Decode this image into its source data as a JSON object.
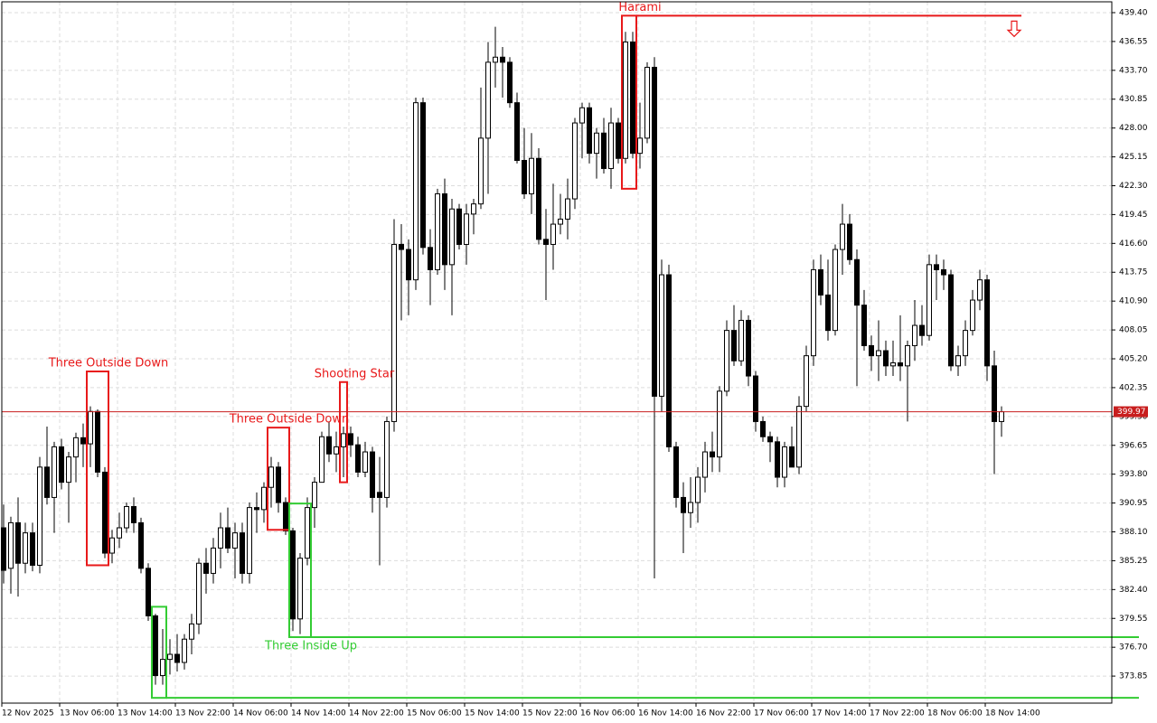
{
  "chart_data": {
    "type": "candlestick",
    "categories": [
      "12 Nov 2025",
      null,
      null,
      null,
      null,
      null,
      null,
      null,
      "13 Nov 06:00",
      null,
      null,
      null,
      null,
      null,
      null,
      null,
      "13 Nov 14:00",
      null,
      null,
      null,
      null,
      null,
      null,
      null,
      "13 Nov 22:00",
      null,
      null,
      null,
      null,
      null,
      null,
      null,
      "14 Nov 06:00",
      null,
      null,
      null,
      null,
      null,
      null,
      null,
      "14 Nov 14:00",
      null,
      null,
      null,
      null,
      null,
      null,
      null,
      "14 Nov 22:00",
      null,
      null,
      null,
      null,
      null,
      null,
      null,
      "15 Nov 06:00",
      null,
      null,
      null,
      null,
      null,
      null,
      null,
      "15 Nov 14:00",
      null,
      null,
      null,
      null,
      null,
      null,
      null,
      "15 Nov 22:00",
      null,
      null,
      null,
      null,
      null,
      null,
      null,
      "16 Nov 06:00",
      null,
      null,
      null,
      null,
      null,
      null,
      null,
      "16 Nov 14:00",
      null,
      null,
      null,
      null,
      null,
      null,
      null,
      "16 Nov 22:00",
      null,
      null,
      null,
      null,
      null,
      null,
      null,
      "17 Nov 06:00",
      null,
      null,
      null,
      null,
      null,
      null,
      null,
      "17 Nov 14:00",
      null,
      null,
      null,
      null,
      null,
      null,
      null,
      "17 Nov 22:00",
      null,
      null,
      null,
      null,
      null,
      null,
      null,
      "18 Nov 06:00",
      null,
      null,
      null,
      null,
      null,
      null,
      null,
      "18 Nov 14:00",
      null,
      null
    ],
    "open": [
      388.5,
      384.5,
      389.0,
      385.0,
      388.0,
      384.8,
      394.5,
      391.5,
      396.5,
      393.0,
      395.5,
      397.4,
      396.8,
      400.0,
      394.0,
      386.0,
      387.5,
      388.5,
      390.6,
      389.0,
      384.5,
      379.8,
      373.9,
      375.5,
      376.0,
      375.2,
      377.5,
      379.0,
      385.0,
      384.0,
      386.5,
      388.5,
      386.5,
      388.0,
      384.0,
      390.5,
      390.3,
      392.5,
      394.5,
      391.0,
      388.2,
      379.5,
      385.5,
      390.5,
      393.0,
      397.5,
      395.8,
      396.5,
      397.8,
      396.7,
      394.0,
      396.0,
      392.0,
      391.5,
      399.0,
      416.5,
      416.0,
      413.0,
      430.5,
      416.2,
      414.0,
      421.5,
      414.5,
      420.0,
      416.5,
      419.5,
      420.5,
      427.0,
      434.5,
      435.0,
      434.5,
      430.5,
      424.8,
      421.5,
      425.0,
      417.0,
      416.5,
      418.5,
      419.0,
      421.0,
      428.5,
      430.0,
      425.5,
      427.5,
      424.0,
      428.5,
      425.0,
      436.5,
      425.5,
      427.0,
      434.0,
      401.5,
      413.5,
      396.5,
      391.5,
      390.0,
      391.0,
      393.5,
      396.0,
      395.5,
      402.0,
      408.0,
      405.0,
      409.0,
      403.5,
      399.0,
      397.5,
      397.0,
      393.5,
      396.5,
      394.5,
      400.5,
      405.5,
      414.0,
      411.5,
      408.0,
      416.0,
      418.5,
      415.0,
      410.5,
      406.5,
      405.5,
      406.0,
      404.5,
      404.8,
      404.5,
      406.5,
      408.5,
      407.5,
      414.5,
      414.0,
      413.5,
      404.5,
      405.5,
      408.0,
      411.0,
      413.0,
      404.5,
      399.0
    ],
    "high": [
      390.8,
      389.6,
      391.5,
      389.0,
      389.0,
      395.5,
      398.5,
      397.0,
      397.3,
      396.0,
      397.9,
      398.8,
      400.5,
      400.2,
      394.5,
      388.3,
      390.0,
      391.0,
      391.5,
      389.5,
      385.0,
      380.0,
      378.5,
      377.5,
      378.0,
      378.0,
      380.0,
      385.5,
      386.5,
      387.5,
      390.0,
      390.5,
      389.0,
      389.0,
      391.0,
      392.0,
      393.0,
      395.5,
      395.0,
      391.5,
      388.5,
      386.0,
      391.5,
      393.5,
      398.0,
      399.0,
      398.0,
      398.5,
      398.5,
      397.5,
      397.0,
      396.5,
      395.5,
      399.5,
      419.0,
      418.5,
      417.0,
      431.0,
      431.0,
      418.0,
      422.0,
      423.0,
      421.0,
      420.5,
      420.5,
      421.0,
      432.0,
      436.5,
      438.0,
      436.0,
      435.0,
      431.5,
      428.0,
      427.5,
      426.0,
      420.0,
      422.5,
      421.5,
      423.0,
      429.0,
      430.5,
      430.5,
      428.0,
      429.0,
      430.0,
      429.0,
      437.5,
      437.5,
      430.5,
      434.5,
      435.0,
      415.0,
      414.5,
      397.0,
      393.0,
      393.5,
      394.5,
      397.0,
      398.0,
      402.5,
      409.0,
      410.5,
      410.0,
      409.5,
      404.0,
      399.5,
      398.0,
      397.5,
      397.0,
      398.5,
      401.5,
      406.5,
      415.0,
      415.5,
      415.0,
      416.5,
      420.5,
      419.5,
      416.0,
      412.0,
      407.5,
      409.0,
      407.0,
      407.0,
      409.5,
      407.0,
      411.0,
      410.5,
      415.5,
      415.5,
      415.0,
      414.0,
      406.5,
      409.0,
      412.0,
      414.0,
      413.5,
      406.0,
      400.5
    ],
    "low": [
      383.0,
      382.0,
      381.7,
      384.0,
      384.2,
      384.0,
      390.8,
      388.0,
      392.3,
      389.0,
      393.0,
      394.5,
      394.5,
      393.5,
      385.5,
      385.0,
      386.5,
      388.0,
      388.0,
      384.0,
      379.3,
      373.0,
      373.0,
      374.0,
      374.3,
      374.5,
      376.0,
      378.0,
      382.0,
      383.0,
      384.5,
      386.0,
      383.5,
      383.0,
      383.0,
      388.0,
      389.0,
      390.5,
      390.0,
      387.8,
      378.3,
      378.0,
      384.8,
      388.5,
      393.0,
      395.0,
      394.0,
      393.5,
      395.5,
      393.5,
      393.5,
      390.0,
      384.8,
      390.5,
      398.0,
      409.0,
      409.5,
      412.0,
      415.5,
      410.5,
      413.5,
      412.0,
      409.5,
      416.0,
      414.5,
      417.5,
      420.0,
      421.5,
      432.0,
      431.0,
      430.0,
      424.5,
      421.0,
      419.5,
      416.5,
      411.0,
      414.0,
      417.5,
      417.0,
      420.0,
      425.0,
      424.5,
      423.0,
      423.5,
      422.0,
      424.5,
      424.5,
      425.0,
      424.0,
      426.5,
      383.5,
      400.0,
      396.0,
      390.5,
      386.0,
      388.5,
      389.0,
      392.0,
      394.0,
      394.0,
      401.5,
      404.5,
      404.5,
      402.5,
      398.0,
      397.0,
      395.0,
      392.5,
      392.5,
      394.5,
      393.8,
      400.0,
      404.5,
      410.5,
      407.0,
      407.5,
      413.5,
      414.5,
      402.5,
      406.0,
      404.0,
      403.0,
      403.5,
      403.5,
      403.0,
      399.0,
      405.0,
      406.5,
      407.0,
      411.0,
      412.0,
      404.0,
      403.5,
      404.5,
      407.5,
      410.0,
      403.0,
      393.8,
      397.5
    ],
    "close": [
      384.3,
      389.0,
      385.0,
      388.0,
      384.8,
      394.5,
      391.5,
      396.5,
      393.0,
      395.5,
      397.4,
      396.8,
      400.0,
      394.0,
      386.0,
      387.5,
      388.5,
      390.6,
      389.0,
      384.5,
      379.8,
      373.9,
      375.5,
      376.0,
      375.2,
      377.5,
      379.0,
      385.0,
      384.0,
      386.5,
      388.5,
      386.5,
      388.0,
      384.0,
      390.5,
      390.3,
      392.5,
      394.5,
      391.0,
      388.2,
      379.5,
      385.5,
      390.5,
      393.0,
      397.5,
      395.8,
      396.5,
      397.8,
      396.7,
      394.0,
      396.0,
      391.5,
      391.5,
      399.0,
      416.5,
      416.0,
      413.0,
      430.5,
      416.2,
      414.0,
      421.5,
      414.5,
      420.0,
      416.5,
      419.5,
      420.5,
      427.0,
      434.5,
      435.0,
      434.5,
      430.5,
      424.8,
      421.5,
      425.0,
      417.0,
      416.5,
      418.5,
      419.0,
      421.0,
      428.5,
      430.0,
      425.5,
      427.5,
      424.0,
      428.5,
      425.0,
      436.5,
      425.5,
      427.0,
      434.0,
      401.5,
      413.5,
      396.5,
      391.5,
      390.0,
      391.0,
      393.5,
      396.0,
      395.5,
      402.0,
      408.0,
      405.0,
      409.0,
      403.5,
      399.0,
      397.5,
      397.0,
      393.5,
      396.5,
      394.5,
      400.5,
      405.5,
      414.0,
      411.5,
      408.0,
      416.0,
      418.5,
      415.0,
      410.5,
      406.5,
      405.5,
      406.0,
      404.5,
      404.8,
      404.5,
      406.5,
      408.5,
      407.5,
      414.5,
      414.0,
      413.5,
      404.5,
      405.5,
      408.0,
      411.0,
      413.0,
      404.5,
      399.0,
      399.97
    ],
    "bull_color": "#ffffff",
    "bear_color": "#000000",
    "ylim": [
      371.18,
      440.47
    ],
    "yticks": [
      {
        "value": 439.4,
        "label": "439.40"
      },
      {
        "value": 436.55,
        "label": "436.55"
      },
      {
        "value": 433.7,
        "label": "433.70"
      },
      {
        "value": 430.85,
        "label": "430.85"
      },
      {
        "value": 428.0,
        "label": "428.00"
      },
      {
        "value": 425.15,
        "label": "425.15"
      },
      {
        "value": 422.3,
        "label": "422.30"
      },
      {
        "value": 419.45,
        "label": "419.45"
      },
      {
        "value": 416.6,
        "label": "416.60"
      },
      {
        "value": 413.75,
        "label": "413.75"
      },
      {
        "value": 410.9,
        "label": "410.90"
      },
      {
        "value": 408.05,
        "label": "408.05"
      },
      {
        "value": 405.2,
        "label": "405.20"
      },
      {
        "value": 402.35,
        "label": "402.35"
      },
      {
        "value": 399.5,
        "label": "399.50"
      },
      {
        "value": 396.65,
        "label": "396.65"
      },
      {
        "value": 393.8,
        "label": "393.80"
      },
      {
        "value": 390.95,
        "label": "390.95"
      },
      {
        "value": 388.1,
        "label": "388.10"
      },
      {
        "value": 385.25,
        "label": "385.25"
      },
      {
        "value": 382.4,
        "label": "382.40"
      },
      {
        "value": 379.55,
        "label": "379.55"
      },
      {
        "value": 376.7,
        "label": "376.70"
      },
      {
        "value": 373.85,
        "label": "373.85"
      }
    ],
    "grid": true,
    "current_price": 399.97,
    "price_line_color": "#c81e1e",
    "patterns": [
      {
        "label": "Three Outside Down",
        "from": 12,
        "to": 14,
        "high": 403.95,
        "low": 384.8,
        "color": "#e8191a",
        "side": "above"
      },
      {
        "label": "Shooting Star",
        "from": 47,
        "to": 47,
        "high": 402.9,
        "low": 393.0,
        "color": "#e8191a",
        "side": "above"
      },
      {
        "label": "Three Outside Down",
        "from": 37,
        "to": 39,
        "high": 398.4,
        "low": 388.3,
        "color": "#e8191a",
        "side": "above"
      },
      {
        "label": "Harami",
        "from": 86,
        "to": 87,
        "high": 439.1,
        "low": 422.0,
        "color": "#e8191a",
        "side": "above",
        "line": "arrow"
      },
      {
        "label": "Three Inside Up",
        "from": 40,
        "to": 42,
        "high": 390.9,
        "low": 377.7,
        "color": "#33cc33",
        "side": "below",
        "line": "edge"
      },
      {
        "from": 21,
        "to": 22,
        "high": 380.7,
        "low": 371.7,
        "color": "#33cc33",
        "side": "below",
        "line": "edge"
      }
    ]
  }
}
